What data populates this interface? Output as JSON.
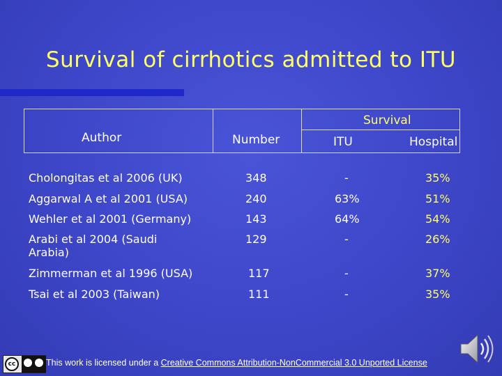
{
  "title": "Survival of cirrhotics admitted to ITU",
  "table": {
    "headers": {
      "author": "Author",
      "number": "Number",
      "survival": "Survival",
      "itu": "ITU",
      "hospital": "Hospital"
    },
    "rows": [
      {
        "author": "Cholongitas et al 2006 (UK)",
        "number": "348",
        "itu": "-",
        "hospital": "35%"
      },
      {
        "author": "Aggarwal A et al 2001 (USA)",
        "number": "240",
        "itu": "63%",
        "hospital": "51%"
      },
      {
        "author": "Wehler et al 2001 (Germany)",
        "number": "143",
        "itu": "64%",
        "hospital": "54%"
      },
      {
        "author": "Arabi et al 2004 (Saudi Arabia)",
        "number": "129",
        "itu": "-",
        "hospital": "26%"
      },
      {
        "author": "Zimmerman et al 1996 (USA)",
        "number": "117",
        "itu": "-",
        "hospital": "37%"
      },
      {
        "author": "Tsai et al 2003 (Taiwan)",
        "number": "111",
        "itu": "-",
        "hospital": "35%"
      }
    ]
  },
  "footer": {
    "badge_text": "cc",
    "license_prefix": "This work is licensed under a ",
    "license_link": "Creative Commons Attribution-NonCommercial 3.0 Unported License"
  },
  "colors": {
    "background": "#3d46c8",
    "title": "#ffff66",
    "accent_bar": "#1e28c8",
    "text": "#ffffff"
  },
  "icons": [
    "cc-license-icon",
    "speaker-icon"
  ]
}
